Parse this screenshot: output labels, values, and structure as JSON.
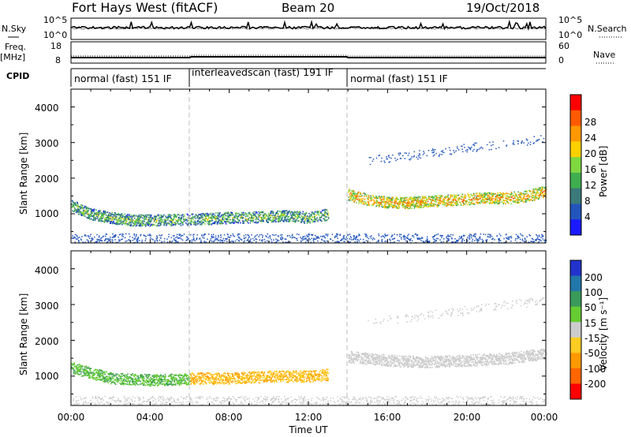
{
  "header": {
    "station": "Fort Hays West (fitACF)",
    "beam": "Beam 20",
    "date": "19/Oct/2018"
  },
  "top_panels": {
    "nsky_label": "N.Sky",
    "nsearch_label": "N.Search",
    "freq_label": "Freq.",
    "freq_unit": "[MHz]",
    "nave_label": "Nave",
    "cpid_label": "CPID",
    "nsky_ticks": [
      "10^5",
      "10^0"
    ],
    "nsearch_ticks": [
      "10^5",
      "10^0"
    ],
    "freq_ticks": [
      "18",
      "8"
    ],
    "nave_ticks": [
      "60",
      "0"
    ]
  },
  "cpid_segments": [
    {
      "label": "normal (fast) 151 IF",
      "start_hour": 0,
      "end_hour": 6
    },
    {
      "label": "interleavedscan (fast) 191 IF",
      "start_hour": 6,
      "end_hour": 14
    },
    {
      "label": "normal (fast) 151 IF",
      "start_hour": 14,
      "end_hour": 24
    }
  ],
  "x_axis": {
    "title": "Time UT",
    "ticks": [
      "00:00",
      "04:00",
      "08:00",
      "12:00",
      "16:00",
      "20:00",
      "00:00"
    ],
    "range_hours": [
      0,
      24
    ]
  },
  "power_panel": {
    "ylabel": "Slant Range [km]",
    "yticks": [
      "1000",
      "2000",
      "3000",
      "4000"
    ],
    "colorbar_title": "Power [dB]",
    "colorbar_ticks": [
      "4",
      "8",
      "12",
      "16",
      "20",
      "24",
      "28"
    ],
    "colors": [
      "#1a1aff",
      "#2255bb",
      "#3a7a7a",
      "#3fae4e",
      "#7fd840",
      "#ffd000",
      "#ff9800",
      "#ff5a00",
      "#ff0000"
    ]
  },
  "velocity_panel": {
    "ylabel": "Slant Range [km]",
    "yticks": [
      "1000",
      "2000",
      "3000",
      "4000"
    ],
    "colorbar_title": "Velocity [m s⁻¹]",
    "colorbar_ticks": [
      "200",
      "100",
      "50",
      "15",
      "-15",
      "-50",
      "-100",
      "-200"
    ],
    "colors": [
      "#2233cc",
      "#2277aa",
      "#3a9a5a",
      "#66cc33",
      "#cccccc",
      "#ffcc22",
      "#ff9900",
      "#ff6600",
      "#ff0000"
    ]
  },
  "chart_data": {
    "type": "heatmap",
    "x_units": "hours UT",
    "y_units": "km",
    "xlim": [
      0,
      24
    ],
    "ylim": [
      180,
      4500
    ],
    "power_scatter_bands": [
      {
        "t": [
          0,
          1,
          2,
          3,
          4,
          5,
          6,
          7,
          8,
          9,
          10,
          11,
          12,
          13
        ],
        "range_center": [
          1250,
          1000,
          900,
          830,
          830,
          840,
          850,
          870,
          900,
          910,
          930,
          950,
          900,
          1000
        ],
        "power_db": 14
      },
      {
        "t": [
          14,
          15,
          16,
          17,
          18,
          19,
          20,
          21,
          22,
          23,
          24
        ],
        "range_center": [
          1550,
          1400,
          1330,
          1320,
          1360,
          1380,
          1420,
          1460,
          1450,
          1500,
          1650
        ],
        "power_db": 22
      }
    ],
    "velocity_scatter_bands": [
      {
        "t": [
          0,
          2,
          4,
          6
        ],
        "range_center": [
          1250,
          950,
          900,
          920
        ],
        "velocity_ms": 30
      },
      {
        "t": [
          6,
          8,
          10,
          12,
          13
        ],
        "range_center": [
          950,
          950,
          1000,
          1000,
          1050
        ],
        "velocity_ms": -30
      },
      {
        "t": [
          14,
          16,
          18,
          20,
          22,
          24
        ],
        "range_center": [
          1550,
          1450,
          1400,
          1450,
          1500,
          1650
        ],
        "velocity_ms": 0
      }
    ],
    "cpid_boundaries_hours": [
      6,
      14
    ]
  }
}
